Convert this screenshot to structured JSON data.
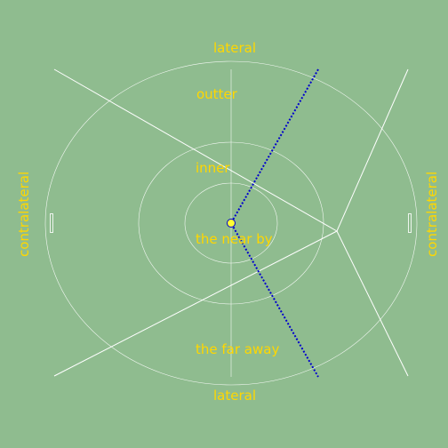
{
  "labels": {
    "top": "lateral",
    "bottom": "lateral",
    "left": "contralateral",
    "right": "contralateral",
    "outer": "outter",
    "inner": "inner",
    "near": "the near by",
    "far": "the far away"
  },
  "colors": {
    "background": "#8fbc8f",
    "text": "#ffd700",
    "lines": "#ffffff",
    "dotted_path": "#0000cd",
    "center_dot": "#ffff33"
  }
}
